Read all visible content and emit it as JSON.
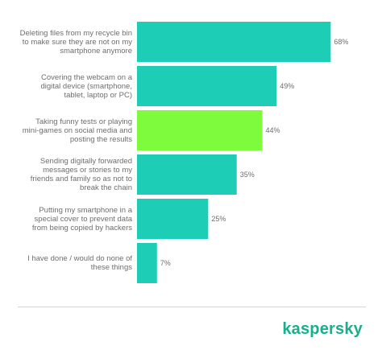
{
  "chart_data": {
    "type": "bar",
    "orientation": "horizontal",
    "categories": [
      "Deleting files from my recycle bin to make sure they are not on my smartphone anymore",
      "Covering the webcam on a digital device (smartphone, tablet, laptop or PC)",
      "Taking funny tests or playing mini-games on social media and posting the results",
      "Sending digitally forwarded messages or stories to my friends and family so as not to break the chain",
      "Putting my smartphone in a special cover to prevent data from being copied by hackers",
      "I have done / would do none of these things"
    ],
    "values": [
      68,
      49,
      44,
      35,
      25,
      7
    ],
    "value_labels": [
      "68%",
      "49%",
      "44%",
      "35%",
      "25%",
      "7%"
    ],
    "bar_colors": [
      "#1dcdb6",
      "#1dcdb6",
      "#7efb3c",
      "#1dcdb6",
      "#1dcdb6",
      "#1dcdb6"
    ],
    "xlim": [
      0,
      70
    ],
    "grid": false,
    "legend": "none"
  },
  "brand": {
    "name": "kaspersky",
    "color": "#1aae8c"
  }
}
